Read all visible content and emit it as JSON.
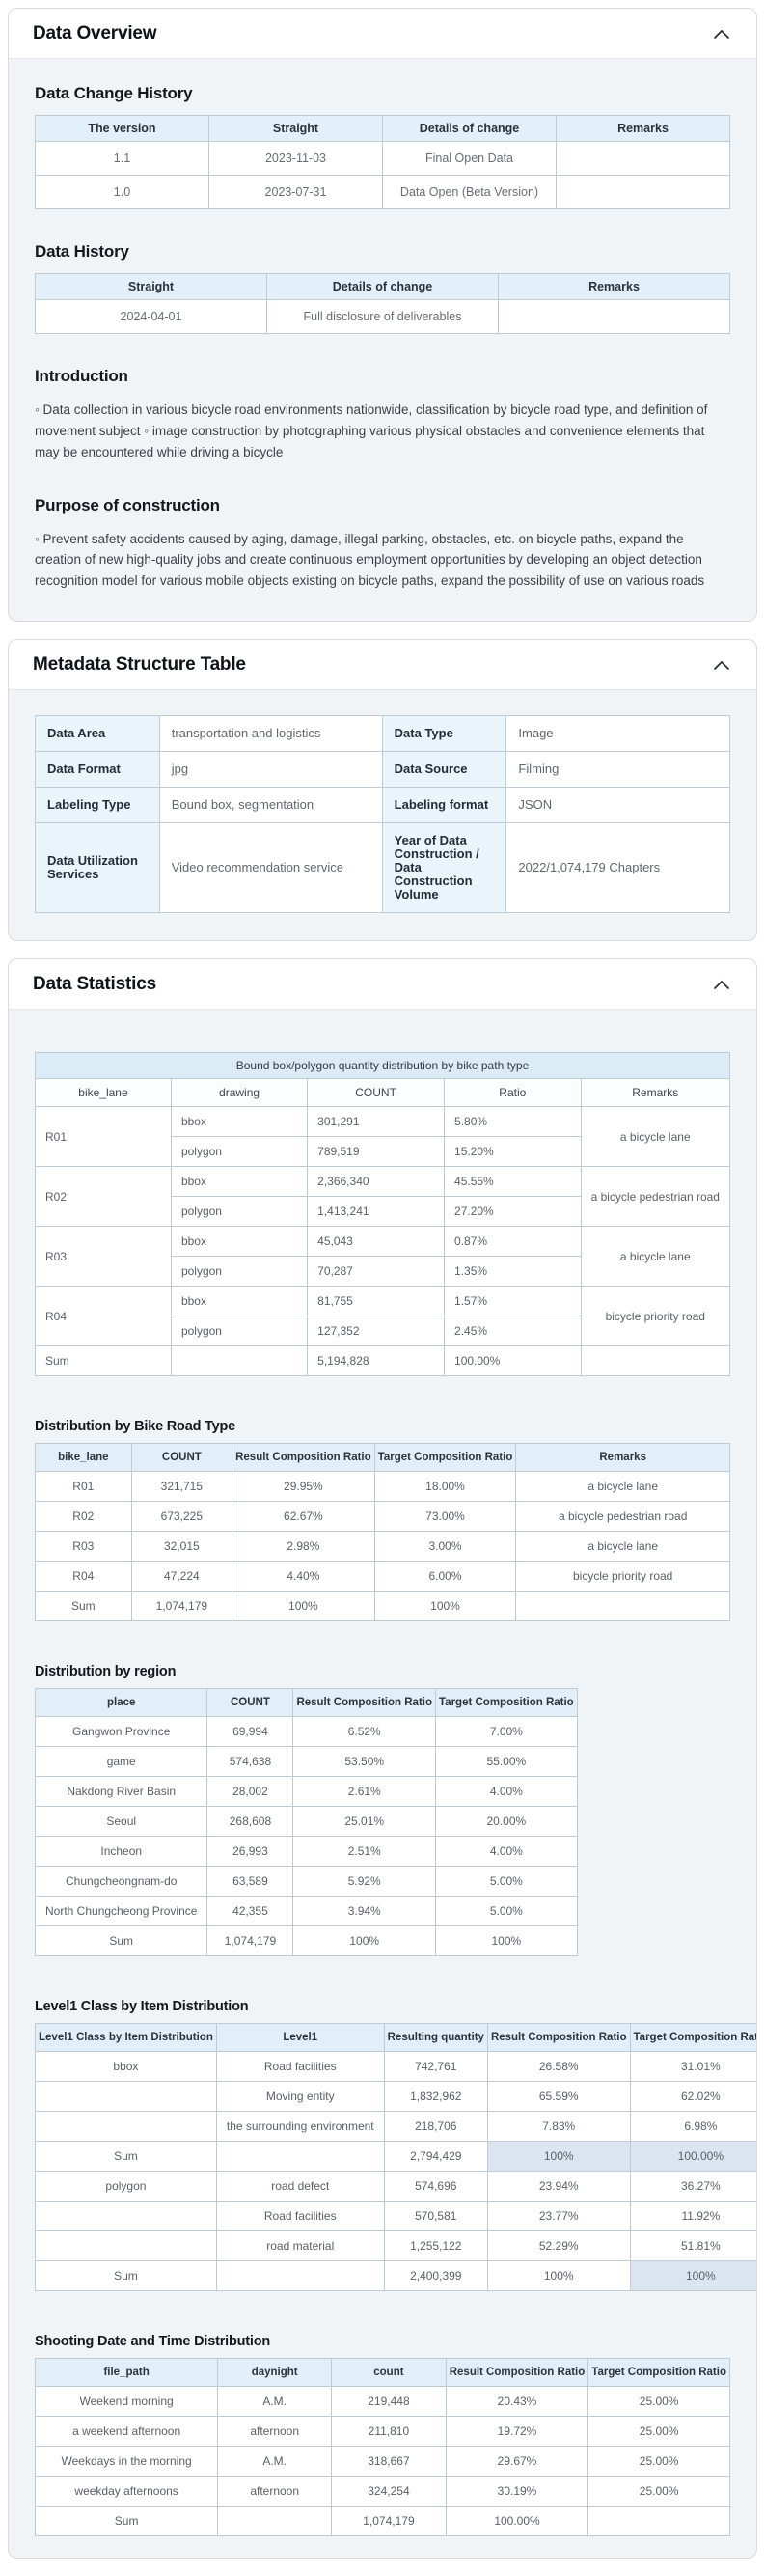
{
  "colors": {
    "table_header_bg": "#e2eff8",
    "table_title_bg": "#dcecf7",
    "metadata_label_bg": "#e9f4fb",
    "sum_highlight_bg": "#dae5ef",
    "card_body_bg": "#f0f4f7",
    "table_border": "#bfcbd5"
  },
  "overview": {
    "title": "Data Overview",
    "change_history": {
      "heading": "Data Change History",
      "columns": [
        "The version",
        "Straight",
        "Details of change",
        "Remarks"
      ],
      "rows": [
        [
          "1.1",
          "2023-11-03",
          "Final Open Data",
          ""
        ],
        [
          "1.0",
          "2023-07-31",
          "Data Open (Beta Version)",
          ""
        ]
      ]
    },
    "data_history": {
      "heading": "Data History",
      "columns": [
        "Straight",
        "Details of change",
        "Remarks"
      ],
      "rows": [
        [
          "2024-04-01",
          "Full disclosure of deliverables",
          ""
        ]
      ]
    },
    "introduction": {
      "heading": "Introduction",
      "body": "◦ Data collection in various bicycle road environments nationwide, classification by bicycle road type, and definition of movement subject ◦ image construction by photographing various physical obstacles and convenience elements that may be encountered while driving a bicycle"
    },
    "purpose": {
      "heading": "Purpose of construction",
      "body": "◦ Prevent safety accidents caused by aging, damage, illegal parking, obstacles, etc. on bicycle paths, expand the creation of new high-quality jobs and create continuous employment opportunities by developing an object detection recognition model for various mobile objects existing on bicycle paths, expand the possibility of use on various roads"
    }
  },
  "metadata": {
    "title": "Metadata Structure Table",
    "table": {
      "rows": [
        [
          {
            "t": "Data Area",
            "th": 1
          },
          "transportation and logistics",
          {
            "t": "Data Type",
            "th": 1
          },
          "Image"
        ],
        [
          {
            "t": "Data Format",
            "th": 1
          },
          "jpg",
          {
            "t": "Data Source",
            "th": 1
          },
          "Filming"
        ],
        [
          {
            "t": "Labeling Type",
            "th": 1
          },
          "Bound box, segmentation",
          {
            "t": "Labeling format",
            "th": 1
          },
          "JSON"
        ],
        [
          {
            "t": "Data Utilization Services",
            "th": 1
          },
          "Video recommendation service",
          {
            "t": "Year of Data Construction / Data Construction Volume",
            "th": 1
          },
          "2022/1,074,179 Chapters"
        ]
      ]
    }
  },
  "statistics": {
    "title": "Data Statistics",
    "bbox_polygon": {
      "title": "Bound box/polygon quantity distribution by bike path type",
      "columns": [
        "bike_lane",
        "drawing",
        "COUNT",
        "Ratio",
        "Remarks"
      ],
      "rows": [
        [
          {
            "t": "R01",
            "rs": 2
          },
          "bbox",
          "301,291",
          "5.80%",
          {
            "t": "a bicycle lane",
            "rs": 2,
            "a": "c"
          }
        ],
        [
          "polygon",
          "789,519",
          "15.20%"
        ],
        [
          {
            "t": "R02",
            "rs": 2
          },
          "bbox",
          "2,366,340",
          "45.55%",
          {
            "t": "a bicycle pedestrian road",
            "rs": 2,
            "a": "c"
          }
        ],
        [
          "polygon",
          "1,413,241",
          "27.20%"
        ],
        [
          {
            "t": "R03",
            "rs": 2
          },
          "bbox",
          "45,043",
          "0.87%",
          {
            "t": "a bicycle lane",
            "rs": 2,
            "a": "c"
          }
        ],
        [
          "polygon",
          "70,287",
          "1.35%"
        ],
        [
          {
            "t": "R04",
            "rs": 2
          },
          "bbox",
          "81,755",
          "1.57%",
          {
            "t": "bicycle priority road",
            "rs": 2,
            "a": "c"
          }
        ],
        [
          "polygon",
          "127,352",
          "2.45%"
        ],
        [
          "Sum",
          "",
          "5,194,828",
          "100.00%",
          ""
        ]
      ]
    },
    "bike_road_type": {
      "heading": "Distribution by Bike Road Type",
      "columns": [
        "bike_lane",
        "COUNT",
        "Result Composition Ratio",
        "Target Composition Ratio",
        "Remarks"
      ],
      "rows": [
        [
          "R01",
          "321,715",
          "29.95%",
          "18.00%",
          "a bicycle lane"
        ],
        [
          "R02",
          "673,225",
          "62.67%",
          "73.00%",
          "a bicycle pedestrian road"
        ],
        [
          "R03",
          "32,015",
          "2.98%",
          "3.00%",
          "a bicycle lane"
        ],
        [
          "R04",
          "47,224",
          "4.40%",
          "6.00%",
          "bicycle priority road"
        ],
        [
          "Sum",
          "1,074,179",
          "100%",
          "100%",
          ""
        ]
      ]
    },
    "region": {
      "heading": "Distribution by region",
      "columns": [
        "place",
        "COUNT",
        "Result Composition Ratio",
        "Target Composition Ratio"
      ],
      "rows": [
        [
          "Gangwon Province",
          "69,994",
          "6.52%",
          "7.00%"
        ],
        [
          "game",
          "574,638",
          "53.50%",
          "55.00%"
        ],
        [
          "Nakdong River Basin",
          "28,002",
          "2.61%",
          "4.00%"
        ],
        [
          "Seoul",
          "268,608",
          "25.01%",
          "20.00%"
        ],
        [
          "Incheon",
          "26,993",
          "2.51%",
          "4.00%"
        ],
        [
          "Chungcheongnam-do",
          "63,589",
          "5.92%",
          "5.00%"
        ],
        [
          "North Chungcheong Province",
          "42,355",
          "3.94%",
          "5.00%"
        ],
        [
          "Sum",
          "1,074,179",
          "100%",
          "100%"
        ]
      ]
    },
    "level1": {
      "heading": "Level1 Class by Item Distribution",
      "columns": [
        "Level1 Class by Item Distribution",
        "Level1",
        "Resulting quantity",
        "Result Composition Ratio",
        "Target Composition Ratio"
      ],
      "rows": [
        [
          "bbox",
          "Road facilities",
          "742,761",
          "26.58%",
          "31.01%"
        ],
        [
          "",
          "Moving entity",
          "1,832,962",
          "65.59%",
          "62.02%"
        ],
        [
          "",
          "the surrounding environment",
          "218,706",
          "7.83%",
          "6.98%"
        ],
        [
          "Sum",
          "",
          "2,794,429",
          {
            "t": "100%",
            "hl": 1
          },
          {
            "t": "100.00%",
            "hl": 1
          }
        ],
        [
          "polygon",
          "road defect",
          "574,696",
          "23.94%",
          "36.27%"
        ],
        [
          "",
          "Road facilities",
          "570,581",
          "23.77%",
          "11.92%"
        ],
        [
          "",
          "road material",
          "1,255,122",
          "52.29%",
          "51.81%"
        ],
        [
          "Sum",
          "",
          "2,400,399",
          "100%",
          {
            "t": "100%",
            "hl": 1
          }
        ]
      ]
    },
    "shooting": {
      "heading": "Shooting Date and Time Distribution",
      "columns": [
        "file_path",
        "daynight",
        "count",
        "Result Composition Ratio",
        "Target Composition Ratio"
      ],
      "rows": [
        [
          "Weekend morning",
          "A.M.",
          "219,448",
          "20.43%",
          "25.00%"
        ],
        [
          "a weekend afternoon",
          "afternoon",
          "211,810",
          "19.72%",
          "25.00%"
        ],
        [
          "Weekdays in the morning",
          "A.M.",
          "318,667",
          "29.67%",
          "25.00%"
        ],
        [
          "weekday afternoons",
          "afternoon",
          "324,254",
          "30.19%",
          "25.00%"
        ],
        [
          "Sum",
          "",
          "1,074,179",
          "100.00%",
          ""
        ]
      ]
    }
  }
}
